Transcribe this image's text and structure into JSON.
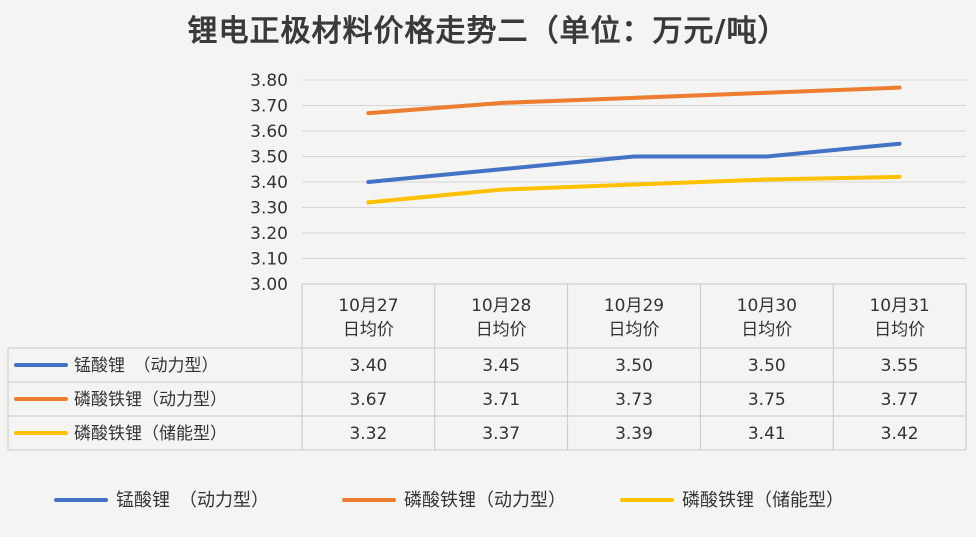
{
  "chart_data": {
    "type": "line",
    "title": "锂电正极材料价格走势二（单位：万元/吨）",
    "categories": [
      "10月27日均价",
      "10月28日均价",
      "10月29日均价",
      "10月30日均价",
      "10月31日均价"
    ],
    "ylim": [
      3.0,
      3.8
    ],
    "yticks": [
      "3.00",
      "3.10",
      "3.20",
      "3.30",
      "3.40",
      "3.50",
      "3.60",
      "3.70",
      "3.80"
    ],
    "grid": true,
    "legend_position": "bottom",
    "series": [
      {
        "name": "锰酸锂　（动力型）",
        "color": "#4472c4",
        "values": [
          3.4,
          3.45,
          3.5,
          3.5,
          3.55
        ],
        "labels": [
          "3.40",
          "3.45",
          "3.50",
          "3.50",
          "3.55"
        ]
      },
      {
        "name": "磷酸铁锂（动力型）",
        "color": "#ed7d31",
        "values": [
          3.67,
          3.71,
          3.73,
          3.75,
          3.77
        ],
        "labels": [
          "3.67",
          "3.71",
          "3.73",
          "3.75",
          "3.77"
        ]
      },
      {
        "name": "磷酸铁锂（储能型）",
        "color": "#ffc000",
        "values": [
          3.32,
          3.37,
          3.39,
          3.41,
          3.42
        ],
        "labels": [
          "3.32",
          "3.37",
          "3.39",
          "3.41",
          "3.42"
        ]
      }
    ]
  }
}
